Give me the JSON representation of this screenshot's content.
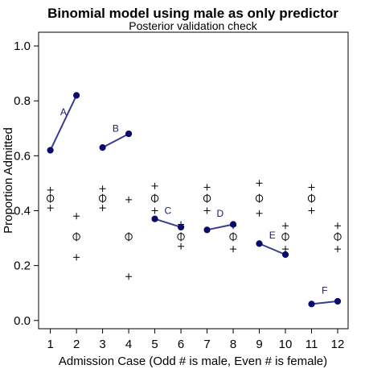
{
  "chart_data": {
    "type": "scatter",
    "title": "Binomial model using male as only predictor",
    "subtitle": "Posterior validation check",
    "xlabel": "Admission Case (Odd # is male, Even # is female)",
    "ylabel": "Proportion Admitted",
    "xlim": [
      0.55,
      12.4
    ],
    "ylim": [
      -0.03,
      1.05
    ],
    "x_ticks": [
      1,
      2,
      3,
      4,
      5,
      6,
      7,
      8,
      9,
      10,
      11,
      12
    ],
    "x_tick_labels": [
      "1",
      "2",
      "3",
      "4",
      "5",
      "6",
      "7",
      "8",
      "9",
      "10",
      "11",
      "12"
    ],
    "y_ticks": [
      0.0,
      0.2,
      0.4,
      0.6,
      0.8,
      1.0
    ],
    "y_tick_labels": [
      "0.0",
      "0.2",
      "0.4",
      "0.6",
      "0.8",
      "1.0"
    ],
    "grid": false,
    "observed": {
      "color": "#0b0b6b",
      "line_color": "#3b3b8f",
      "pairs": [
        {
          "label": "A",
          "points": [
            [
              1,
              0.62
            ],
            [
              2,
              0.82
            ]
          ]
        },
        {
          "label": "B",
          "points": [
            [
              3,
              0.63
            ],
            [
              4,
              0.68
            ]
          ]
        },
        {
          "label": "C",
          "points": [
            [
              5,
              0.37
            ],
            [
              6,
              0.34
            ]
          ]
        },
        {
          "label": "D",
          "points": [
            [
              7,
              0.33
            ],
            [
              8,
              0.35
            ]
          ]
        },
        {
          "label": "E",
          "points": [
            [
              9,
              0.28
            ],
            [
              10,
              0.24
            ]
          ]
        },
        {
          "label": "F",
          "points": [
            [
              11,
              0.06
            ],
            [
              12,
              0.07
            ]
          ]
        }
      ],
      "label_positions": [
        [
          1.5,
          0.76
        ],
        [
          3.5,
          0.7
        ],
        [
          5.5,
          0.4
        ],
        [
          7.5,
          0.39
        ],
        [
          9.5,
          0.31
        ],
        [
          11.5,
          0.11
        ]
      ]
    },
    "posterior": {
      "x": [
        1,
        2,
        3,
        4,
        5,
        6,
        7,
        8,
        9,
        10,
        11,
        12
      ],
      "mean": [
        0.445,
        0.305,
        0.445,
        0.305,
        0.445,
        0.305,
        0.445,
        0.305,
        0.445,
        0.305,
        0.445,
        0.305
      ],
      "upper": [
        0.475,
        0.38,
        0.48,
        0.44,
        0.49,
        0.35,
        0.485,
        0.345,
        0.5,
        0.345,
        0.485,
        0.345
      ],
      "lower": [
        0.41,
        0.23,
        0.41,
        0.16,
        0.4,
        0.27,
        0.4,
        0.26,
        0.39,
        0.26,
        0.4,
        0.26
      ]
    }
  }
}
